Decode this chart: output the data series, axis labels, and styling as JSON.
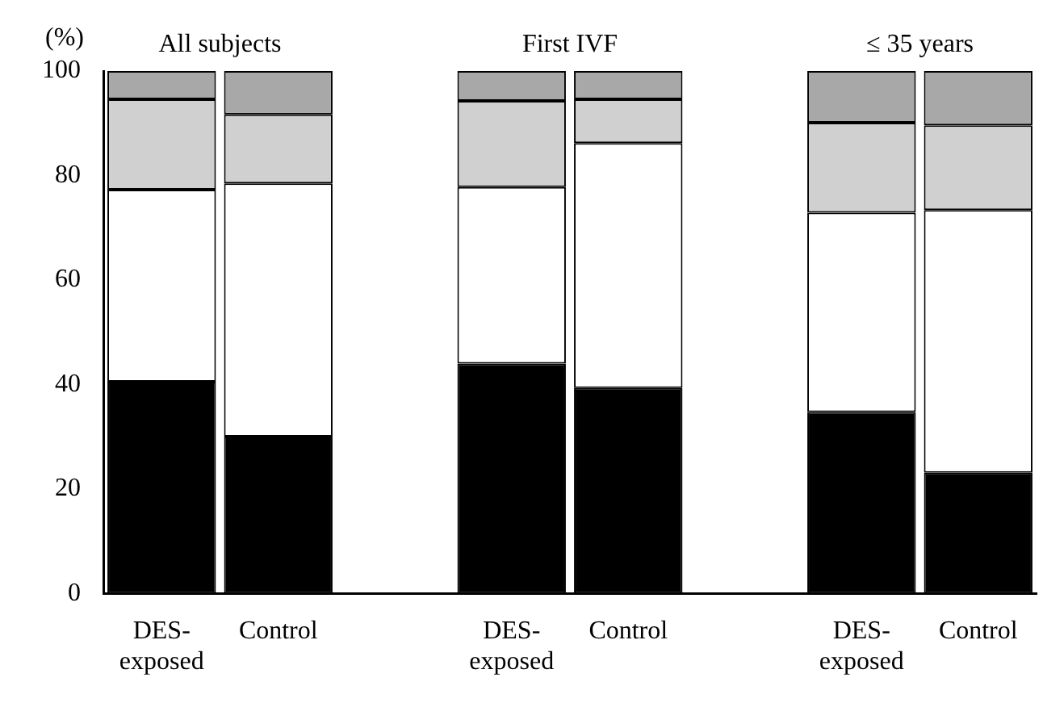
{
  "chart_data": {
    "type": "bar",
    "stacked": true,
    "ylabel": "(%)",
    "categories": [
      "DES-exposed",
      "Control",
      null,
      "DES-exposed",
      "Control",
      null,
      "DES-exposed",
      "Control"
    ],
    "series": [
      {
        "color": "#000000",
        "values": [
          40.5,
          30,
          null,
          44,
          39.3,
          null,
          34.7,
          23.1
        ]
      },
      {
        "color": "#ffffff",
        "values": [
          36.8,
          48.5,
          null,
          33.8,
          46.9,
          null,
          38.2,
          50.3
        ]
      },
      {
        "color": "#d0d0d0",
        "values": [
          17.3,
          13.2,
          null,
          16.5,
          8.4,
          null,
          17.2,
          16.2
        ]
      },
      {
        "color": "#a8a8a8",
        "values": [
          5.4,
          8.3,
          null,
          5.7,
          5.4,
          null,
          9.9,
          10.4
        ]
      }
    ],
    "ylim": [
      0,
      100
    ],
    "yticks": [
      0,
      20,
      40,
      60,
      80,
      100
    ],
    "grid": false,
    "legend": false,
    "annotations": [
      "All subjects",
      "First IVF",
      "≤ 35 years"
    ]
  }
}
